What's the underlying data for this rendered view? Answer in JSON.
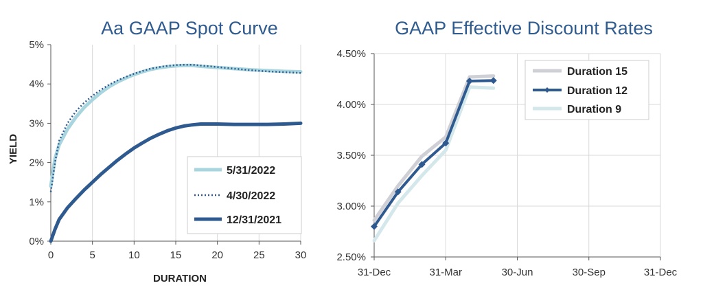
{
  "colors": {
    "dark_blue": "#2e5a8f",
    "light_blue": "#a8d5de",
    "pale_blue": "#d4e8ec",
    "grey": "#cfcfd6",
    "title": "#2f5b8f"
  },
  "chart_data": [
    {
      "type": "line",
      "title": "Aa GAAP Spot Curve",
      "xlabel": "DURATION",
      "ylabel": "YIELD",
      "xlim": [
        0,
        30
      ],
      "ylim": [
        0,
        5
      ],
      "x_ticks": [
        0,
        5,
        10,
        15,
        20,
        25,
        30
      ],
      "x_tick_labels": [
        "0",
        "5",
        "10",
        "15",
        "20",
        "25",
        "30"
      ],
      "y_ticks": [
        0,
        1,
        2,
        3,
        4,
        5
      ],
      "y_tick_labels": [
        "0%",
        "1%",
        "2%",
        "3%",
        "4%",
        "5%"
      ],
      "grid": "vertical",
      "legend_position": "bottom-right",
      "series": [
        {
          "name": "5/31/2022",
          "style": "solid",
          "color": "#a8d5de",
          "x": [
            0,
            0.5,
            1,
            2,
            3,
            4,
            5,
            6,
            7,
            8,
            9,
            10,
            11,
            12,
            13,
            14,
            15,
            16,
            17,
            18,
            20,
            22,
            24,
            26,
            28,
            30
          ],
          "y": [
            1.4,
            2.1,
            2.45,
            2.85,
            3.15,
            3.4,
            3.6,
            3.78,
            3.93,
            4.05,
            4.15,
            4.24,
            4.31,
            4.37,
            4.41,
            4.44,
            4.46,
            4.47,
            4.47,
            4.45,
            4.42,
            4.39,
            4.36,
            4.34,
            4.32,
            4.31
          ]
        },
        {
          "name": "4/30/2022",
          "style": "dotted",
          "color": "#2e5a8f",
          "x": [
            0,
            0.5,
            1,
            2,
            3,
            4,
            5,
            6,
            7,
            8,
            9,
            10,
            11,
            12,
            13,
            14,
            15,
            16,
            17,
            18,
            20,
            22,
            24,
            26,
            28,
            30
          ],
          "y": [
            1.25,
            2.0,
            2.55,
            3.0,
            3.3,
            3.52,
            3.7,
            3.85,
            3.98,
            4.09,
            4.18,
            4.26,
            4.33,
            4.39,
            4.43,
            4.46,
            4.48,
            4.49,
            4.49,
            4.47,
            4.43,
            4.39,
            4.35,
            4.32,
            4.3,
            4.28
          ]
        },
        {
          "name": "12/31/2021",
          "style": "solid-thick",
          "color": "#2e5a8f",
          "x": [
            0,
            0.5,
            1,
            2,
            3,
            4,
            5,
            6,
            7,
            8,
            9,
            10,
            11,
            12,
            13,
            14,
            15,
            16,
            17,
            18,
            20,
            22,
            24,
            26,
            28,
            30
          ],
          "y": [
            0,
            0.3,
            0.55,
            0.85,
            1.08,
            1.3,
            1.5,
            1.7,
            1.88,
            2.06,
            2.22,
            2.37,
            2.5,
            2.62,
            2.72,
            2.81,
            2.88,
            2.93,
            2.96,
            2.98,
            2.98,
            2.97,
            2.97,
            2.97,
            2.98,
            3.0
          ]
        }
      ]
    },
    {
      "type": "line",
      "title": "GAAP Effective Discount Rates",
      "xlabel": "",
      "ylabel": "",
      "x_categories": [
        "31-Dec",
        "31-Mar",
        "30-Jun",
        "30-Sep",
        "31-Dec"
      ],
      "xlim": [
        0,
        12
      ],
      "ylim": [
        2.5,
        4.5
      ],
      "y_ticks": [
        2.5,
        3.0,
        3.5,
        4.0,
        4.5
      ],
      "y_tick_labels": [
        "2.50%",
        "3.00%",
        "3.50%",
        "4.00%",
        "4.50%"
      ],
      "grid": "both",
      "legend_position": "top-right",
      "series": [
        {
          "name": "Duration 15",
          "style": "solid-thick",
          "color": "#cfcfd6",
          "x": [
            0,
            1,
            2,
            3,
            4,
            5
          ],
          "y": [
            2.86,
            3.2,
            3.49,
            3.68,
            4.27,
            4.28
          ]
        },
        {
          "name": "Duration 12",
          "style": "solid-marker",
          "color": "#2e5a8f",
          "x": [
            0,
            1,
            2,
            3,
            4,
            5
          ],
          "y": [
            2.8,
            3.14,
            3.41,
            3.62,
            4.23,
            4.235
          ]
        },
        {
          "name": "Duration 9",
          "style": "solid-thick",
          "color": "#d4e8ec",
          "x": [
            0,
            1,
            2,
            3,
            4,
            5
          ],
          "y": [
            2.66,
            3.03,
            3.3,
            3.55,
            4.17,
            4.16
          ]
        }
      ]
    }
  ]
}
